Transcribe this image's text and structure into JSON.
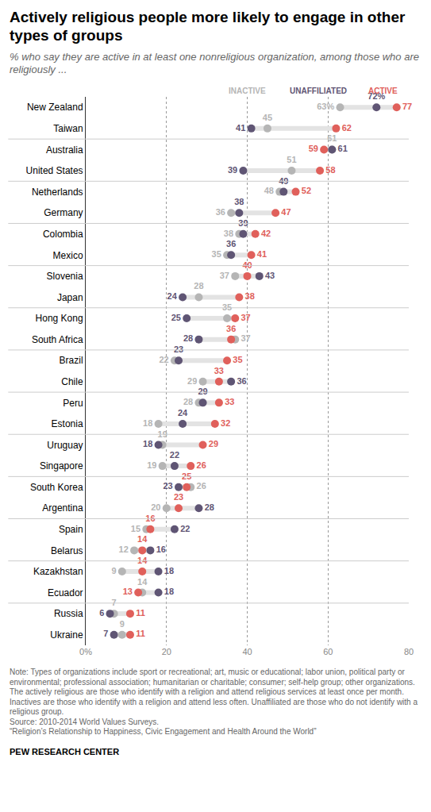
{
  "chart_data": {
    "type": "dot",
    "title": "Actively religious people more likely to engage in other types of groups",
    "subtitle": "% who say they are active in at least one nonreligious organization, among those who are religiously ...",
    "orientation": "horizontal",
    "data_labels": true,
    "grid": true,
    "xlim": [
      0,
      80
    ],
    "xticks": [
      {
        "value": 0,
        "label": "0%"
      },
      20,
      40,
      60,
      80
    ],
    "categories": [
      "New Zealand",
      "Taiwan",
      "Australia",
      "United States",
      "Netherlands",
      "Germany",
      "Colombia",
      "Mexico",
      "Slovenia",
      "Japan",
      "Hong Kong",
      "South Africa",
      "Brazil",
      "Chile",
      "Peru",
      "Estonia",
      "Uruguay",
      "Singapore",
      "South Korea",
      "Argentina",
      "Spain",
      "Belarus",
      "Kazakhstan",
      "Ecuador",
      "Russia",
      "Ukraine"
    ],
    "series": [
      {
        "name": "INACTIVE",
        "color": "#b5b5b5",
        "values": [
          63,
          45,
          61,
          51,
          48,
          36,
          38,
          35,
          37,
          28,
          35,
          37,
          22,
          29,
          28,
          18,
          19,
          19,
          26,
          20,
          15,
          12,
          9,
          14,
          7,
          9
        ],
        "value_labels": [
          "63%",
          "45",
          "61",
          "51",
          "48",
          "36",
          "38",
          "35",
          "37",
          "28",
          "35",
          "37",
          "22",
          "29",
          "28",
          "18",
          "19",
          "19",
          "26",
          "20",
          "15",
          "12",
          "9",
          "14",
          "7",
          "9"
        ]
      },
      {
        "name": "UNAFFILIATED",
        "color": "#5f5574",
        "values": [
          72,
          41,
          61,
          39,
          49,
          38,
          39,
          36,
          43,
          24,
          25,
          28,
          23,
          36,
          29,
          24,
          18,
          22,
          23,
          28,
          22,
          16,
          18,
          18,
          6,
          7
        ],
        "value_labels": [
          "72%",
          "41",
          "61",
          "39",
          "49",
          "38",
          "39",
          "36",
          "43",
          "24",
          "25",
          "28",
          "23",
          "36",
          "29",
          "24",
          "18",
          "22",
          "23",
          "28",
          "22",
          "16",
          "18",
          "18",
          "6",
          "7"
        ]
      },
      {
        "name": "ACTIVE",
        "color": "#e0605b",
        "values": [
          77,
          62,
          59,
          58,
          52,
          47,
          42,
          41,
          40,
          38,
          37,
          36,
          35,
          33,
          33,
          32,
          29,
          26,
          25,
          23,
          16,
          14,
          14,
          13,
          11,
          11
        ]
      }
    ],
    "notes": [
      "Note: Types of organizations include sport or recreational; art, music or educational; labor union, political party or environmental; professional association; humanitarian or charitable; consumer; self-help group; other organizations. The actively religious are those who identify with a religion and attend religious services at least once per month. Inactives are those who identify with a religion and attend less often. Unaffiliated are those who do not identify with a religious group.",
      "Source: 2010-2014 World Values Surveys.",
      "“Religion’s Relationship to Happiness, Civic Engagement and Health Around the World”"
    ],
    "credit": "PEW RESEARCH CENTER"
  }
}
